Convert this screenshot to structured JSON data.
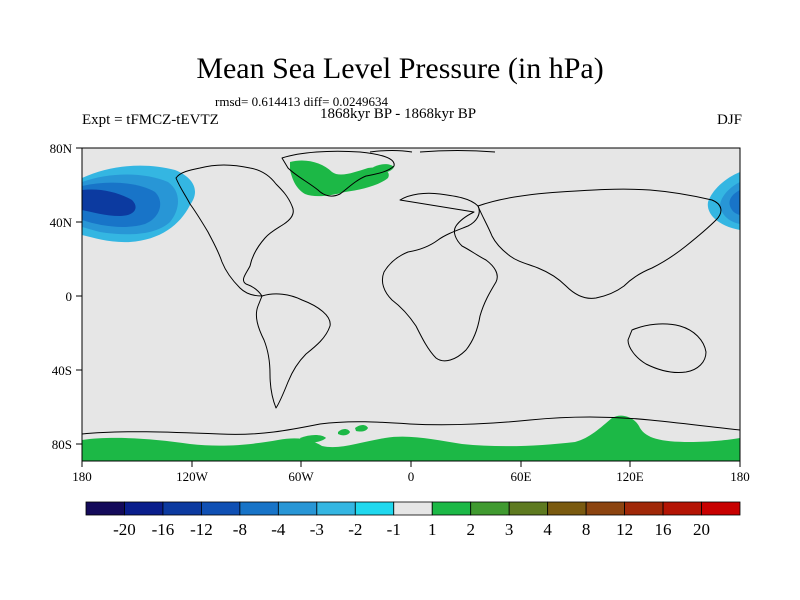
{
  "header": {
    "title": "Mean Sea Level Pressure (in hPa)",
    "stats": "rmsd= 0.614413 diff= 0.0249634",
    "period": "1868kyr BP - 1868kyr BP",
    "experiment": "Expt = tFMCZ-tEVTZ",
    "season": "DJF"
  },
  "axes": {
    "lat_labels": [
      "80N",
      "40N",
      "0",
      "40S",
      "80S"
    ],
    "lon_labels": [
      "180",
      "120W",
      "60W",
      "0",
      "60E",
      "120E",
      "180"
    ]
  },
  "colorbar": {
    "colors": [
      "#140a5a",
      "#0a1e8c",
      "#0c3aa0",
      "#1050b4",
      "#1874c8",
      "#2896d6",
      "#34b6e2",
      "#20d8ee",
      "#e6e6e6",
      "#1cb846",
      "#409a30",
      "#5e7a20",
      "#7a5a10",
      "#8c4410",
      "#a02808",
      "#b41404",
      "#c80000"
    ],
    "labels": [
      "-20",
      "-16",
      "-12",
      "-8",
      "-4",
      "-3",
      "-2",
      "-1",
      "1",
      "2",
      "3",
      "4",
      "8",
      "12",
      "16",
      "20"
    ]
  },
  "map": {
    "land_color": "#e6e6e6",
    "positive_color": "#1cb846",
    "neg_colors": [
      "#34b6e2",
      "#2896d6",
      "#1874c8",
      "#0c3aa0"
    ]
  }
}
